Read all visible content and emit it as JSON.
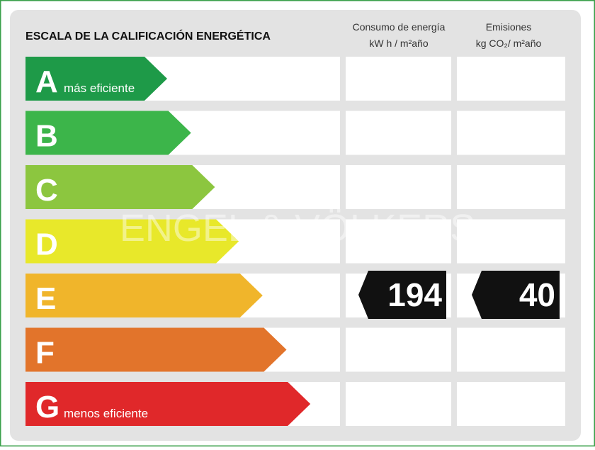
{
  "title": "ESCALA DE LA CALIFICACIÓN ENERGÉTICA",
  "columns": [
    {
      "name": "Consumo de energía",
      "unit": "kW h / m²año"
    },
    {
      "name": "Emisiones",
      "unit": "kg CO₂/ m²año"
    }
  ],
  "watermark": "ENGEL & VÖLKERS",
  "rows": [
    {
      "letter": "A",
      "note": "más eficiente",
      "color": "#1e9a48"
    },
    {
      "letter": "B",
      "color": "#3cb54a"
    },
    {
      "letter": "C",
      "color": "#8cc63f"
    },
    {
      "letter": "D",
      "color": "#e8e82a"
    },
    {
      "letter": "E",
      "color": "#f0b52b",
      "consumption": "194",
      "emissions": "40"
    },
    {
      "letter": "F",
      "color": "#e2742b"
    },
    {
      "letter": "G",
      "note": "menos eficiente",
      "color": "#e0282a"
    }
  ]
}
